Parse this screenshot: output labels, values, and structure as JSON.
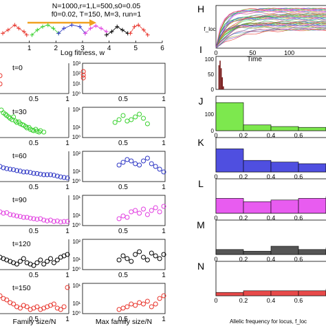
{
  "chart_data": [
    {
      "id": "G",
      "type": "scatter",
      "title_lines": [
        "N=1000,r=1,L=500,s0=0.05",
        "f0=0.02, T=150, M=3, run=1"
      ],
      "xlabel": "Log fitness,  w",
      "xlim": [
        0,
        6
      ],
      "xticks": [
        "1",
        "2",
        "3",
        "4",
        "5",
        "6"
      ],
      "series": [
        {
          "color": "#e8332a",
          "x": [
            0.0,
            0.2,
            0.45,
            0.6,
            0.8,
            0.9
          ],
          "y": [
            0.4,
            0.6,
            0.9,
            0.7,
            0.5,
            0.3
          ]
        },
        {
          "color": "#38d12e",
          "x": [
            1.1,
            1.3,
            1.5,
            1.7,
            1.9,
            2.1
          ],
          "y": [
            0.3,
            0.6,
            0.8,
            0.9,
            0.7,
            0.4
          ]
        },
        {
          "color": "#2b34c4",
          "x": [
            2.1,
            2.3,
            2.6,
            2.9,
            3.1
          ],
          "y": [
            0.4,
            0.7,
            0.9,
            0.8,
            0.4
          ]
        },
        {
          "color": "#e13de0",
          "x": [
            3.1,
            3.3,
            3.5,
            3.7,
            3.9
          ],
          "y": [
            0.4,
            0.7,
            0.85,
            0.7,
            0.5
          ]
        },
        {
          "color": "#000000",
          "x": [
            3.9,
            4.1,
            4.3,
            4.5,
            4.7
          ],
          "y": [
            0.3,
            0.5,
            0.8,
            0.6,
            0.4
          ]
        },
        {
          "color": "#e8332a",
          "x": [
            4.8,
            4.95,
            5.1,
            5.3,
            5.45
          ],
          "y": [
            0.4,
            0.8,
            0.9,
            0.6,
            0.3
          ]
        }
      ]
    },
    {
      "id": "rows",
      "type": "scatter",
      "xlabel_left": "Family size/N",
      "xlabel_right": "Max family size/N",
      "xticks": [
        "0.5",
        "1"
      ],
      "right_yticks": [
        "10⁰",
        "10¹",
        "10²",
        "10³"
      ],
      "rows": [
        {
          "label": "t=0",
          "color": "#e8332a",
          "left": {
            "x": [
              0.0,
              0.0
            ],
            "y": [
              0.6,
              0.3
            ]
          },
          "right": {
            "x": [
              0.01,
              0.01,
              0.01
            ],
            "y": [
              0.75,
              0.62,
              0.52
            ]
          }
        },
        {
          "label": "t=30",
          "color": "#38d12e",
          "left": {
            "x": [
              0.02,
              0.05,
              0.08,
              0.1,
              0.13,
              0.15,
              0.18,
              0.2,
              0.23,
              0.25,
              0.28,
              0.3,
              0.33,
              0.35,
              0.38,
              0.4,
              0.43,
              0.45,
              0.48,
              0.5,
              0.53,
              0.55,
              0.58,
              0.6,
              0.65
            ],
            "y": [
              0.95,
              0.85,
              0.8,
              0.75,
              0.7,
              0.65,
              0.6,
              0.7,
              0.55,
              0.5,
              0.52,
              0.45,
              0.42,
              0.4,
              0.35,
              0.3,
              0.32,
              0.25,
              0.22,
              0.2,
              0.25,
              0.18,
              0.15,
              0.2,
              0.15
            ]
          },
          "right": {
            "x": [
              0.4,
              0.45,
              0.5,
              0.55,
              0.6,
              0.65,
              0.7,
              0.75,
              0.8
            ],
            "y": [
              0.5,
              0.6,
              0.75,
              0.55,
              0.6,
              0.7,
              0.8,
              0.65,
              0.45
            ]
          }
        },
        {
          "label": "t=60",
          "color": "#2b34c4",
          "left": {
            "x": [
              0.0,
              0.05,
              0.1,
              0.15,
              0.2,
              0.25,
              0.3,
              0.35,
              0.4,
              0.45,
              0.5,
              0.55,
              0.6,
              0.65,
              0.7,
              0.75,
              0.8,
              0.85,
              0.9,
              0.95,
              1.0
            ],
            "y": [
              0.5,
              0.45,
              0.42,
              0.4,
              0.38,
              0.35,
              0.33,
              0.3,
              0.3,
              0.28,
              0.25,
              0.24,
              0.22,
              0.2,
              0.2,
              0.2,
              0.18,
              0.15,
              0.12,
              0.1,
              0.08
            ]
          },
          "right": {
            "x": [
              0.45,
              0.5,
              0.55,
              0.6,
              0.65,
              0.7,
              0.75,
              0.8,
              0.85,
              0.9,
              0.95,
              1.0
            ],
            "y": [
              0.55,
              0.65,
              0.75,
              0.7,
              0.6,
              0.55,
              0.7,
              0.8,
              0.6,
              0.5,
              0.4,
              0.3
            ]
          }
        },
        {
          "label": "t=90",
          "color": "#e13de0",
          "left": {
            "x": [
              0.0,
              0.05,
              0.1,
              0.15,
              0.2,
              0.25,
              0.3,
              0.35,
              0.4,
              0.45,
              0.5,
              0.55,
              0.6,
              0.65,
              0.7,
              0.75,
              0.8,
              0.85,
              0.9,
              0.95,
              1.0
            ],
            "y": [
              0.45,
              0.4,
              0.42,
              0.35,
              0.33,
              0.3,
              0.28,
              0.25,
              0.25,
              0.22,
              0.2,
              0.18,
              0.2,
              0.15,
              0.12,
              0.15,
              0.1,
              0.12,
              0.08,
              0.1,
              0.1
            ]
          },
          "right": {
            "x": [
              0.45,
              0.5,
              0.55,
              0.6,
              0.65,
              0.7,
              0.75,
              0.8,
              0.85,
              0.9,
              0.95,
              1.0
            ],
            "y": [
              0.2,
              0.3,
              0.25,
              0.45,
              0.5,
              0.4,
              0.55,
              0.35,
              0.5,
              0.6,
              0.45,
              0.65
            ]
          }
        },
        {
          "label": "t=120",
          "color": "#000000",
          "left": {
            "x": [
              0.0,
              0.05,
              0.1,
              0.15,
              0.2,
              0.25,
              0.3,
              0.35,
              0.4,
              0.45,
              0.5,
              0.55,
              0.6,
              0.65,
              0.7,
              0.75,
              0.8,
              0.85,
              0.9,
              0.95,
              1.0
            ],
            "y": [
              0.4,
              0.35,
              0.3,
              0.25,
              0.2,
              0.15,
              0.25,
              0.35,
              0.2,
              0.15,
              0.1,
              0.2,
              0.3,
              0.15,
              0.25,
              0.35,
              0.2,
              0.3,
              0.4,
              0.45,
              0.5
            ]
          },
          "right": {
            "x": [
              0.45,
              0.5,
              0.55,
              0.6,
              0.65,
              0.7,
              0.75,
              0.8,
              0.85,
              0.9,
              0.95,
              1.0
            ],
            "y": [
              0.3,
              0.45,
              0.35,
              0.25,
              0.5,
              0.6,
              0.4,
              0.3,
              0.55,
              0.45,
              0.35,
              0.5
            ]
          }
        },
        {
          "label": "t=150",
          "color": "#e8332a",
          "left": {
            "x": [
              0.0,
              0.05,
              0.1,
              0.15,
              0.2,
              0.25,
              0.3,
              0.35,
              0.4,
              0.45,
              0.5,
              0.55,
              0.6,
              0.65,
              0.7,
              0.75,
              0.8,
              0.85,
              0.9,
              0.95,
              1.0
            ],
            "y": [
              0.6,
              0.5,
              0.45,
              0.35,
              0.3,
              0.2,
              0.15,
              0.25,
              0.2,
              0.1,
              0.15,
              0.2,
              0.1,
              0.15,
              0.2,
              0.25,
              0.3,
              0.15,
              0.1,
              0.2,
              0.9
            ]
          },
          "right": {
            "x": [
              0.45,
              0.5,
              0.55,
              0.6,
              0.65,
              0.7,
              0.75,
              0.8,
              0.85,
              0.9,
              0.95,
              1.0
            ],
            "y": [
              0.1,
              0.15,
              0.2,
              0.3,
              0.25,
              0.35,
              0.3,
              0.4,
              0.2,
              0.3,
              0.5,
              0.6
            ]
          }
        }
      ]
    },
    {
      "id": "H",
      "type": "line",
      "panel_label": "H",
      "ylabel": "f_loc",
      "xlabel": "Time",
      "xticks": [
        "0",
        "50",
        "100"
      ],
      "xlim": [
        0,
        150
      ],
      "ylim": [
        0,
        1
      ]
    },
    {
      "id": "I",
      "type": "bar",
      "panel_label": "I",
      "yticks": [
        "0",
        "50",
        "100"
      ],
      "ylim": [
        0,
        100
      ],
      "values": [
        0,
        80,
        95,
        70,
        40,
        10,
        0
      ],
      "bin_width": 0.005,
      "color": "#7a1f1f"
    },
    {
      "id": "J_N",
      "type": "bar",
      "xlabel": "Allelic frequency for locus,  f_loc",
      "xticks": [
        "0",
        "0.2",
        "0.4",
        "0.6"
      ],
      "bins": [
        0,
        0.2,
        0.4,
        0.6,
        0.8,
        1.0
      ],
      "panels": [
        {
          "label": "J",
          "color": "#7de84e",
          "ylim": [
            0,
            200
          ],
          "yticks": [
            "0",
            "100"
          ],
          "values": [
            170,
            35,
            25,
            20,
            15
          ]
        },
        {
          "label": "K",
          "color": "#4f4fe0",
          "ylim": [
            0,
            100
          ],
          "yticks": [],
          "values": [
            70,
            35,
            30,
            25,
            20
          ]
        },
        {
          "label": "L",
          "color": "#e85cf0",
          "ylim": [
            0,
            100
          ],
          "yticks": [],
          "values": [
            45,
            35,
            40,
            45,
            50
          ]
        },
        {
          "label": "M",
          "color": "#555555",
          "ylim": [
            0,
            100
          ],
          "yticks": [],
          "values": [
            15,
            10,
            25,
            15,
            20
          ]
        },
        {
          "label": "N",
          "color": "#e84a4a",
          "ylim": [
            0,
            100
          ],
          "yticks": [],
          "values": [
            10,
            15,
            15,
            15,
            20
          ]
        }
      ]
    }
  ]
}
